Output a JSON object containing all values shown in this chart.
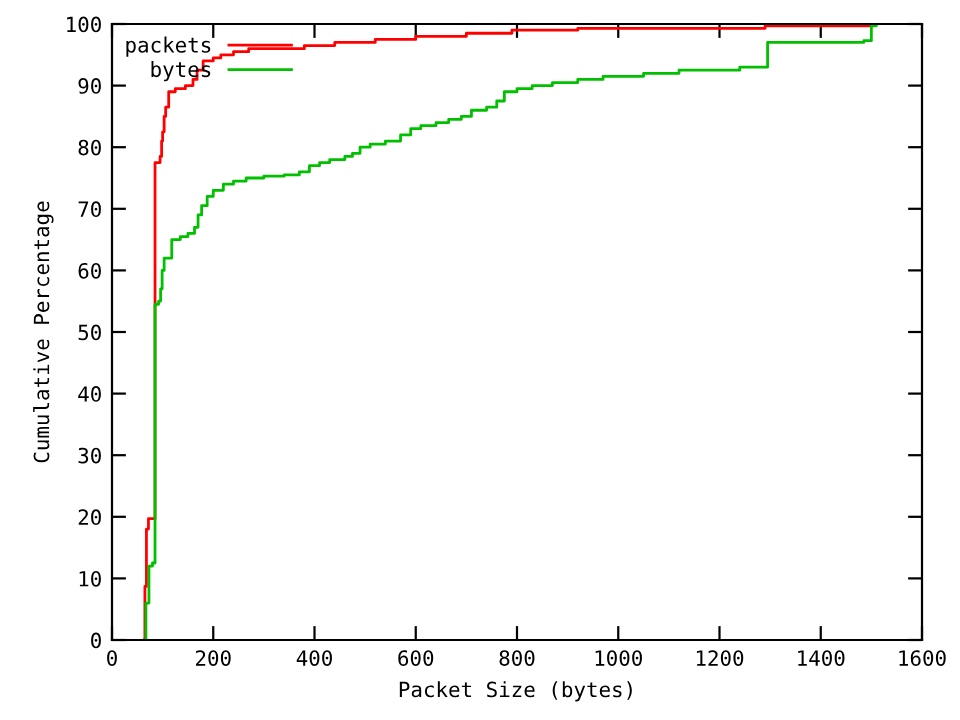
{
  "chart_data": {
    "type": "step",
    "xlabel": "Packet Size (bytes)",
    "ylabel": "Cumulative Percentage",
    "xlim": [
      0,
      1600
    ],
    "xticks": [
      0,
      200,
      400,
      600,
      800,
      1000,
      1200,
      1400,
      1600
    ],
    "ylim": [
      0,
      100
    ],
    "yticks": [
      0,
      10,
      20,
      30,
      40,
      50,
      60,
      70,
      80,
      90,
      100
    ],
    "grid": false,
    "legend": "top left",
    "series": [
      {
        "name": "packets",
        "color": "#ff0000",
        "x": [
          64,
          65,
          68,
          72,
          85,
          95,
          98,
          100,
          103,
          106,
          112,
          125,
          145,
          160,
          168,
          180,
          200,
          215,
          240,
          270,
          380,
          440,
          520,
          600,
          700,
          790,
          920,
          1290,
          1500
        ],
        "values": [
          0,
          8.7,
          18,
          19.7,
          77.5,
          78.5,
          81,
          82.5,
          85,
          86.5,
          89,
          89.5,
          90,
          91,
          92.5,
          94,
          94.5,
          95,
          95.5,
          96,
          96.5,
          97,
          97.5,
          98,
          98.5,
          99,
          99.3,
          99.7,
          100
        ]
      },
      {
        "name": "bytes",
        "color": "#00c000",
        "x": [
          64,
          67,
          73,
          80,
          85,
          92,
          96,
          99,
          103,
          118,
          135,
          150,
          163,
          170,
          177,
          188,
          200,
          220,
          240,
          265,
          300,
          340,
          370,
          390,
          410,
          430,
          460,
          475,
          490,
          510,
          540,
          570,
          590,
          610,
          640,
          665,
          690,
          710,
          740,
          760,
          775,
          800,
          830,
          870,
          920,
          970,
          1050,
          1120,
          1240,
          1295,
          1485,
          1500,
          1510
        ],
        "values": [
          0,
          6,
          12,
          12.5,
          54.5,
          55,
          57,
          60,
          62,
          65,
          65.5,
          66,
          67,
          69,
          70.5,
          72,
          73,
          74,
          74.5,
          75,
          75.3,
          75.5,
          76,
          77,
          77.5,
          78,
          78.5,
          79,
          80,
          80.5,
          81,
          82,
          83,
          83.5,
          84,
          84.5,
          85,
          86,
          86.5,
          87.5,
          89,
          89.5,
          90,
          90.5,
          91,
          91.5,
          92,
          92.5,
          93,
          97,
          97.3,
          99.7,
          100
        ]
      }
    ]
  }
}
